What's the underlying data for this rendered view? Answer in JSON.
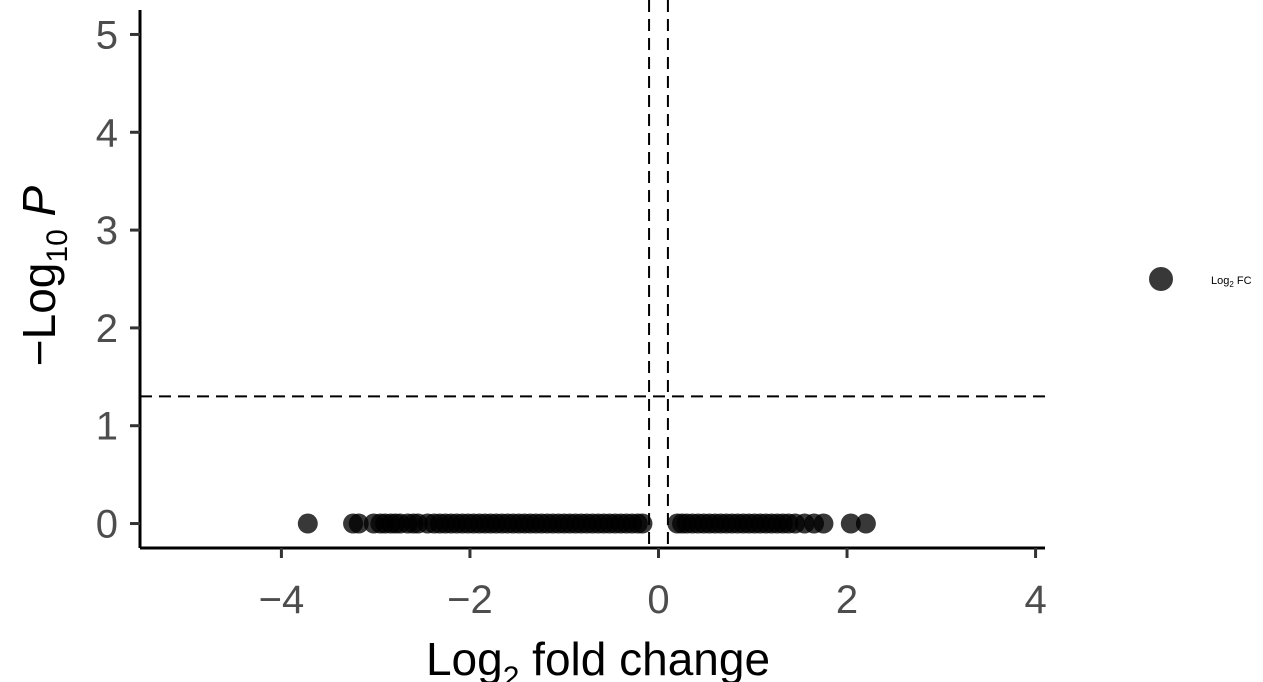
{
  "chart_data": {
    "type": "scatter",
    "title": "",
    "xlabel": {
      "main": "Log",
      "sub": "2",
      "rest": " fold change"
    },
    "ylabel": {
      "prefix": "−Log",
      "sub": "10",
      "rest": " P"
    },
    "xlim": [
      -5.5,
      4.1
    ],
    "ylim": [
      -0.25,
      5.25
    ],
    "x_ticks": [
      -4,
      -2,
      0,
      2,
      4
    ],
    "x_tick_labels": [
      "−4",
      "−2",
      "0",
      "2",
      "4"
    ],
    "y_ticks": [
      0,
      1,
      2,
      3,
      4,
      5
    ],
    "y_tick_labels": [
      "0",
      "1",
      "2",
      "3",
      "4",
      "5"
    ],
    "grid": false,
    "cutoffs": {
      "fc_low": -0.1,
      "fc_high": 0.1,
      "p_line": 1.3
    },
    "legend": {
      "position": "right",
      "label_main": "Log",
      "label_sub": "2",
      "label_rest": " FC",
      "color": "#000000"
    },
    "point_color": "#000000",
    "point_opacity": 0.78,
    "series": [
      {
        "category": "Log2 FC",
        "points": [
          [
            -3.72,
            0
          ],
          [
            -3.24,
            0
          ],
          [
            -3.18,
            0
          ],
          [
            -3.02,
            0
          ],
          [
            -2.95,
            0
          ],
          [
            -2.9,
            0
          ],
          [
            -2.84,
            0
          ],
          [
            -2.79,
            0
          ],
          [
            -2.74,
            0
          ],
          [
            -2.66,
            0
          ],
          [
            -2.6,
            0
          ],
          [
            -2.55,
            0
          ],
          [
            -2.45,
            0
          ],
          [
            -2.38,
            0
          ],
          [
            -2.32,
            0
          ],
          [
            -2.26,
            0
          ],
          [
            -2.2,
            0
          ],
          [
            -2.14,
            0
          ],
          [
            -2.08,
            0
          ],
          [
            -2.02,
            0
          ],
          [
            -1.96,
            0
          ],
          [
            -1.9,
            0
          ],
          [
            -1.84,
            0
          ],
          [
            -1.78,
            0
          ],
          [
            -1.72,
            0
          ],
          [
            -1.66,
            0
          ],
          [
            -1.6,
            0
          ],
          [
            -1.54,
            0
          ],
          [
            -1.48,
            0
          ],
          [
            -1.42,
            0
          ],
          [
            -1.36,
            0
          ],
          [
            -1.3,
            0
          ],
          [
            -1.24,
            0
          ],
          [
            -1.18,
            0
          ],
          [
            -1.12,
            0
          ],
          [
            -1.06,
            0
          ],
          [
            -1.0,
            0
          ],
          [
            -0.94,
            0
          ],
          [
            -0.88,
            0
          ],
          [
            -0.82,
            0
          ],
          [
            -0.76,
            0
          ],
          [
            -0.7,
            0
          ],
          [
            -0.64,
            0
          ],
          [
            -0.58,
            0
          ],
          [
            -0.52,
            0
          ],
          [
            -0.46,
            0
          ],
          [
            -0.4,
            0
          ],
          [
            -0.34,
            0
          ],
          [
            -0.28,
            0
          ],
          [
            -0.22,
            0
          ],
          [
            -0.17,
            0
          ],
          [
            0.2,
            0
          ],
          [
            0.25,
            0
          ],
          [
            0.3,
            0
          ],
          [
            0.36,
            0
          ],
          [
            0.42,
            0
          ],
          [
            0.48,
            0
          ],
          [
            0.54,
            0
          ],
          [
            0.6,
            0
          ],
          [
            0.66,
            0
          ],
          [
            0.72,
            0
          ],
          [
            0.78,
            0
          ],
          [
            0.84,
            0
          ],
          [
            0.9,
            0
          ],
          [
            0.96,
            0
          ],
          [
            1.02,
            0
          ],
          [
            1.08,
            0
          ],
          [
            1.14,
            0
          ],
          [
            1.2,
            0
          ],
          [
            1.26,
            0
          ],
          [
            1.32,
            0
          ],
          [
            1.38,
            0
          ],
          [
            1.45,
            0
          ],
          [
            1.55,
            0
          ],
          [
            1.65,
            0
          ],
          [
            1.75,
            0
          ],
          [
            2.04,
            0
          ],
          [
            2.2,
            0
          ]
        ]
      }
    ]
  }
}
